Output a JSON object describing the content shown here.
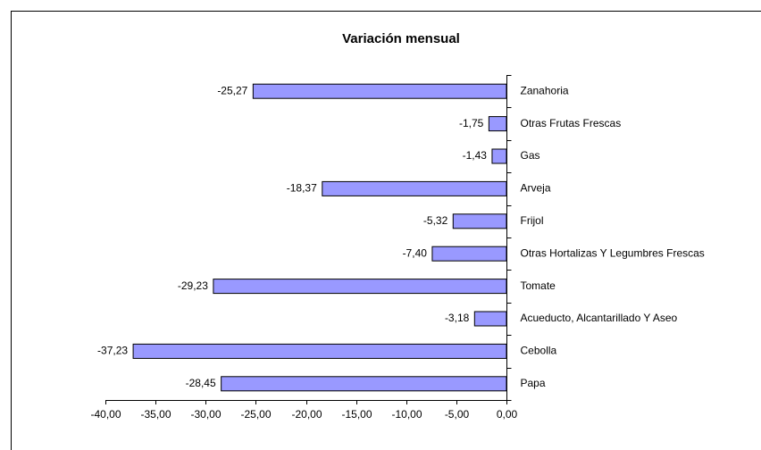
{
  "chart_data": {
    "type": "bar",
    "orientation": "horizontal",
    "title": "Variación mensual",
    "categories": [
      "Zanahoria",
      "Otras Frutas Frescas",
      "Gas",
      "Arveja",
      "Frijol",
      "Otras Hortalizas Y Legumbres Frescas",
      "Tomate",
      "Acueducto, Alcantarillado Y Aseo",
      "Cebolla",
      "Papa"
    ],
    "values": [
      -25.27,
      -1.75,
      -1.43,
      -18.37,
      -5.32,
      -7.4,
      -29.23,
      -3.18,
      -37.23,
      -28.45
    ],
    "value_labels": [
      "-25,27",
      "-1,75",
      "-1,43",
      "-18,37",
      "-5,32",
      "-7,40",
      "-29,23",
      "-3,18",
      "-37,23",
      "-28,45"
    ],
    "color": "#9999ff",
    "xlim": [
      -40,
      0
    ],
    "xticks": [
      {
        "value": -40,
        "label": "-40,00"
      },
      {
        "value": -35,
        "label": "-35,00"
      },
      {
        "value": -30,
        "label": "-30,00"
      },
      {
        "value": -25,
        "label": "-25,00"
      },
      {
        "value": -20,
        "label": "-20,00"
      },
      {
        "value": -15,
        "label": "-15,00"
      },
      {
        "value": -10,
        "label": "-10,00"
      },
      {
        "value": -5,
        "label": "-5,00"
      },
      {
        "value": 0,
        "label": "0,00"
      }
    ],
    "grid": false
  }
}
